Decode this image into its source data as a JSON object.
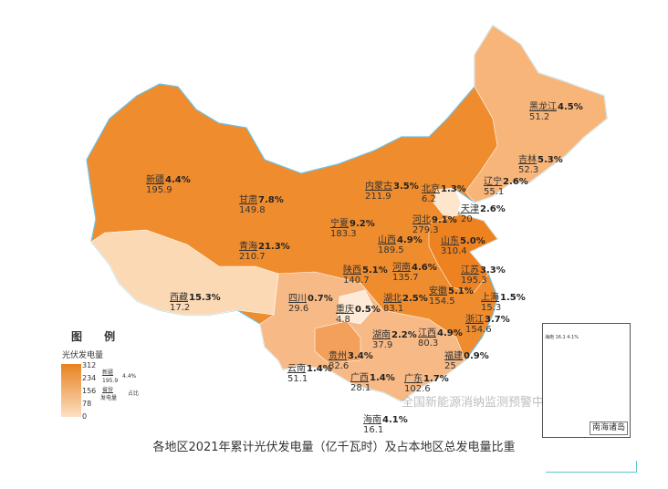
{
  "caption": "各地区2021年累计光伏发电量（亿千瓦时）及占本地区总发电量比重",
  "legend": {
    "title": "图 例",
    "subtitle": "光伏发电量",
    "ticks": [
      "312",
      "234",
      "156",
      "78",
      "0"
    ],
    "example": {
      "name": "新疆",
      "value": "195.9",
      "share": "4.4%",
      "province_label": "省份",
      "gen_label": "发电量",
      "share_label": "占比"
    },
    "color_max": "#e9821f",
    "color_min": "#fbe0c3"
  },
  "inset": {
    "label": "南海诸岛",
    "mini_label": "海南 16.1 4.1%"
  },
  "watermark": "全国新能源消纳监测预警中心",
  "provinces": [
    {
      "name": "新疆",
      "value": "195.9",
      "share": "4.4%"
    },
    {
      "name": "黑龙江",
      "value": "51.2",
      "share": "4.5%"
    },
    {
      "name": "吉林",
      "value": "52.3",
      "share": "5.3%"
    },
    {
      "name": "辽宁",
      "value": "55.1",
      "share": "2.6%"
    },
    {
      "name": "内蒙古",
      "value": "211.9",
      "share": "3.5%"
    },
    {
      "name": "北京",
      "value": "6.2",
      "share": "1.3%"
    },
    {
      "name": "天津",
      "value": "20",
      "share": "2.6%"
    },
    {
      "name": "河北",
      "value": "279.3",
      "share": "9.1%"
    },
    {
      "name": "山西",
      "value": "189.5",
      "share": "4.9%"
    },
    {
      "name": "山东",
      "value": "310.4",
      "share": "5.0%"
    },
    {
      "name": "甘肃",
      "value": "149.8",
      "share": "7.8%"
    },
    {
      "name": "宁夏",
      "value": "183.3",
      "share": "9.2%"
    },
    {
      "name": "青海",
      "value": "210.7",
      "share": "21.3%"
    },
    {
      "name": "陕西",
      "value": "140.7",
      "share": "5.1%"
    },
    {
      "name": "河南",
      "value": "135.7",
      "share": "4.6%"
    },
    {
      "name": "江苏",
      "value": "195.3",
      "share": "3.3%"
    },
    {
      "name": "安徽",
      "value": "154.5",
      "share": "5.1%"
    },
    {
      "name": "上海",
      "value": "15.3",
      "share": "1.5%"
    },
    {
      "name": "湖北",
      "value": "83.1",
      "share": "2.5%"
    },
    {
      "name": "西藏",
      "value": "17.2",
      "share": "15.3%"
    },
    {
      "name": "四川",
      "value": "29.6",
      "share": "0.7%"
    },
    {
      "name": "重庆",
      "value": "4.8",
      "share": "0.5%"
    },
    {
      "name": "浙江",
      "value": "154.6",
      "share": "3.7%"
    },
    {
      "name": "湖南",
      "value": "37.9",
      "share": "2.2%"
    },
    {
      "name": "江西",
      "value": "80.3",
      "share": "4.9%"
    },
    {
      "name": "贵州",
      "value": "82.6",
      "share": "3.4%"
    },
    {
      "name": "福建",
      "value": "25",
      "share": "0.9%"
    },
    {
      "name": "云南",
      "value": "51.1",
      "share": "1.4%"
    },
    {
      "name": "广西",
      "value": "28.1",
      "share": "1.4%"
    },
    {
      "name": "广东",
      "value": "102.6",
      "share": "1.7%"
    },
    {
      "name": "海南",
      "value": "16.1",
      "share": "4.1%"
    }
  ]
}
